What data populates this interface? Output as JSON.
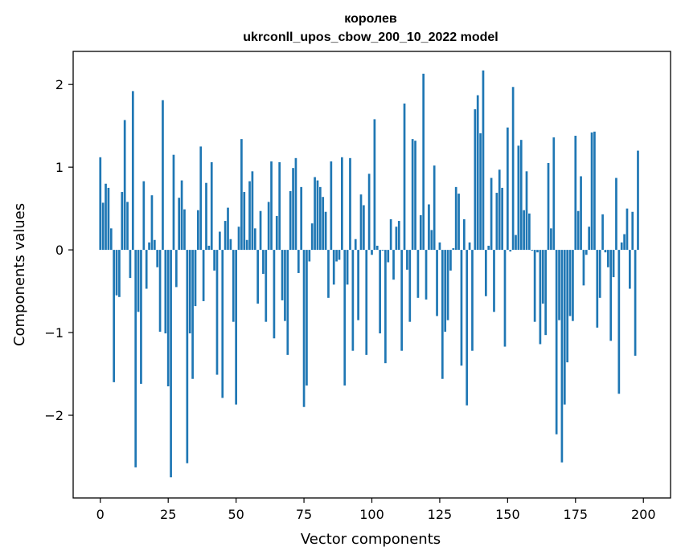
{
  "chart_data": {
    "type": "bar",
    "title_line1": "королев",
    "title_line2": "ukrconll_upos_cbow_200_10_2022 model",
    "xlabel": "Vector components",
    "ylabel": "Components values",
    "xlim": [
      -10,
      210
    ],
    "ylim": [
      -3.0,
      2.4
    ],
    "xticks": [
      0,
      25,
      50,
      75,
      100,
      125,
      150,
      175,
      200
    ],
    "xtick_labels": [
      "0",
      "25",
      "50",
      "75",
      "100",
      "125",
      "150",
      "175",
      "200"
    ],
    "yticks": [
      -2,
      -1,
      0,
      1,
      2
    ],
    "ytick_labels": [
      "−2",
      "−1",
      "0",
      "1",
      "2"
    ],
    "bar_color": "#1f77b4",
    "grid": false,
    "values": [
      1.12,
      0.57,
      0.8,
      0.75,
      0.26,
      -1.6,
      -0.55,
      -0.57,
      0.7,
      1.57,
      0.58,
      -0.34,
      1.92,
      -2.63,
      -0.75,
      -1.62,
      0.83,
      -0.47,
      0.09,
      0.66,
      0.12,
      -0.21,
      -0.99,
      1.81,
      -1.01,
      -1.65,
      -2.75,
      1.15,
      -0.45,
      0.63,
      0.84,
      0.49,
      -2.58,
      -1.01,
      -1.56,
      -0.68,
      0.48,
      1.25,
      -0.62,
      0.81,
      0.05,
      1.06,
      -0.25,
      -1.51,
      0.22,
      -1.79,
      0.35,
      0.51,
      0.13,
      -0.87,
      -1.87,
      0.28,
      1.34,
      0.7,
      0.12,
      0.83,
      0.95,
      0.26,
      -0.65,
      0.47,
      -0.29,
      -0.87,
      0.58,
      1.07,
      -1.07,
      0.41,
      1.06,
      -0.61,
      -0.86,
      -1.27,
      0.71,
      0.99,
      1.11,
      -0.28,
      0.76,
      -1.9,
      -1.64,
      -0.14,
      0.32,
      0.88,
      0.84,
      0.76,
      0.64,
      0.46,
      -0.58,
      1.07,
      -0.42,
      -0.14,
      -0.12,
      1.12,
      -1.64,
      -0.42,
      1.11,
      -1.22,
      0.13,
      -0.85,
      0.67,
      0.54,
      -1.27,
      0.92,
      -0.06,
      1.58,
      0.05,
      -1.01,
      -0.01,
      -1.37,
      -0.15,
      0.37,
      -0.36,
      0.28,
      0.35,
      -1.22,
      1.77,
      -0.24,
      -0.87,
      1.34,
      1.32,
      -0.58,
      0.42,
      2.13,
      -0.6,
      0.55,
      0.24,
      1.02,
      -0.8,
      0.09,
      -1.56,
      -0.99,
      -0.85,
      -0.25,
      0.02,
      0.76,
      0.68,
      -1.4,
      0.37,
      -1.88,
      0.09,
      -1.22,
      1.7,
      1.87,
      1.41,
      2.17,
      -0.56,
      0.05,
      0.87,
      -0.75,
      0.69,
      0.97,
      0.75,
      -1.17,
      1.48,
      -0.02,
      1.97,
      0.18,
      1.26,
      1.33,
      0.48,
      0.95,
      0.44,
      -0.01,
      -0.87,
      -0.03,
      -1.14,
      -0.65,
      -1.03,
      1.05,
      0.26,
      1.36,
      -2.23,
      -0.85,
      -2.57,
      -1.87,
      -1.36,
      -0.8,
      -0.86,
      1.38,
      0.47,
      0.89,
      -0.43,
      -0.06,
      0.28,
      1.42,
      1.43,
      -0.94,
      -0.58,
      0.43,
      -0.03,
      -0.21,
      -1.1,
      -0.33,
      0.87,
      -1.74,
      0.09,
      0.19,
      0.5,
      -0.47,
      0.46,
      -1.28,
      1.2
    ]
  }
}
